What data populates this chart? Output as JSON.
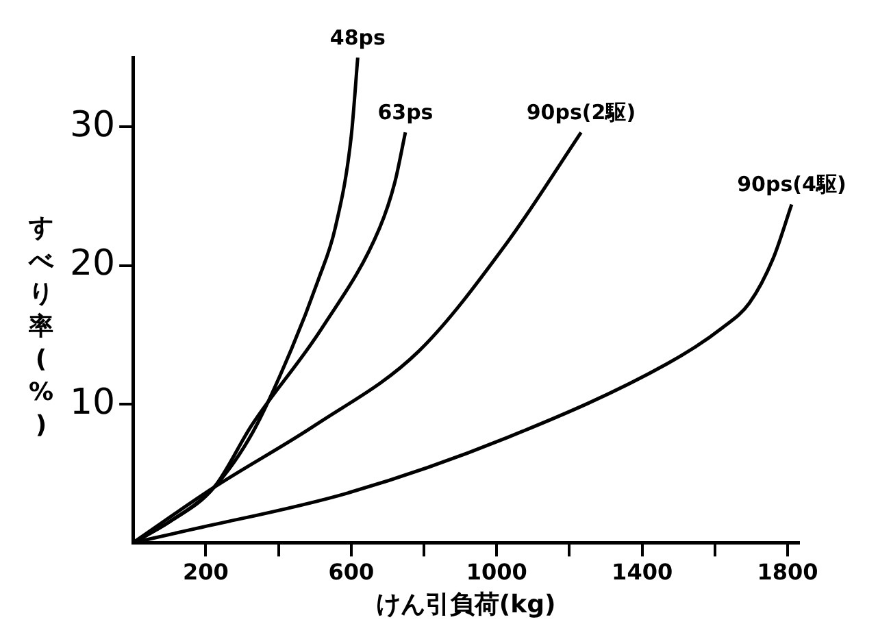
{
  "chart_data": {
    "type": "line",
    "xlabel": "けん引負荷(kg)",
    "ylabel": "すべり率(%)",
    "xlim": [
      0,
      1830
    ],
    "ylim": [
      0,
      35
    ],
    "xticks": [
      200,
      {
        "value": 400,
        "label": null
      },
      600,
      {
        "value": 800,
        "label": null
      },
      1000,
      {
        "value": 1200,
        "label": null
      },
      1400,
      {
        "value": 1600,
        "label": null
      },
      1800
    ],
    "yticks": [
      10,
      20,
      30
    ],
    "grid": false,
    "legend": false,
    "marker": "none",
    "line_style": "solid",
    "series": [
      {
        "name": "48ps",
        "color": "#000000",
        "x": [
          0,
          100,
          223,
          330,
          433,
          510,
          556,
          600,
          618
        ],
        "values": [
          0,
          1.5,
          4,
          8,
          13.8,
          19,
          22.7,
          29.3,
          35
        ]
      },
      {
        "name": "63ps",
        "color": "#000000",
        "x": [
          0,
          100,
          223,
          327,
          520,
          678,
          720,
          749
        ],
        "values": [
          0,
          1.5,
          4,
          8.5,
          15.5,
          22.7,
          26,
          29.6
        ]
      },
      {
        "name": "90ps(2駆)",
        "color": "#000000",
        "x": [
          0,
          223,
          502,
          785,
          1030,
          1232
        ],
        "values": [
          0,
          4,
          8.5,
          13.8,
          21.7,
          29.6
        ]
      },
      {
        "name": "90ps(4駆)",
        "color": "#000000",
        "x": [
          0,
          152,
          592,
          1030,
          1468,
          1620,
          1695,
          1760,
          1811
        ],
        "values": [
          0,
          0.9,
          3.6,
          7.6,
          12.9,
          15.5,
          17.3,
          20.5,
          24.4
        ]
      }
    ]
  }
}
